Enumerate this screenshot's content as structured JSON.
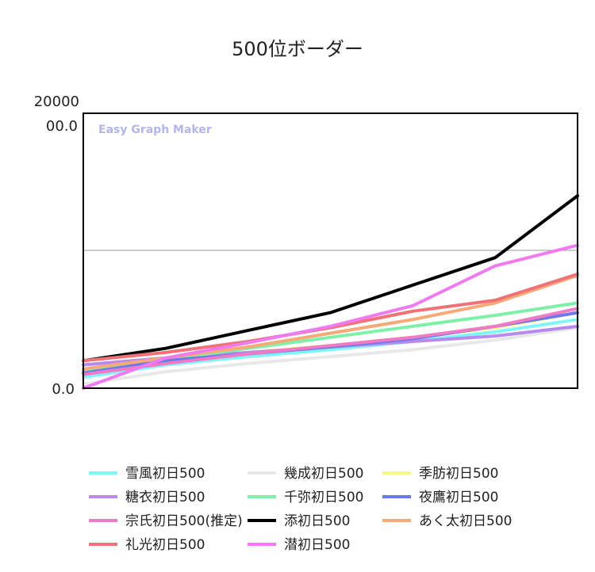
{
  "chart_data": {
    "type": "line",
    "title": "500位ボーダー",
    "watermark": "Easy Graph Maker",
    "xlabel": "",
    "ylabel": "",
    "y_tick_labels": [
      "20000",
      "00.0",
      "0.0"
    ],
    "ylim": [
      0,
      200000
    ],
    "grid": "one horizontal line at 100000",
    "legend_position": "bottom",
    "x": [
      1,
      2,
      3,
      4,
      5,
      6,
      7
    ],
    "series": [
      {
        "name": "雪風初日500",
        "color": "#7ff5f5",
        "values": [
          8000,
          17000,
          23000,
          28000,
          34000,
          41000,
          50000
        ]
      },
      {
        "name": "幾成初日500",
        "color": "#e8e8e8",
        "values": [
          3000,
          12000,
          18000,
          23000,
          28000,
          35000,
          44000
        ]
      },
      {
        "name": "季肪初日500",
        "color": "#f8f68a",
        "values": [
          12000,
          20000,
          26000,
          31000,
          37000,
          44000,
          55000
        ]
      },
      {
        "name": "糖衣初日500",
        "color": "#b88af0",
        "values": [
          17000,
          22000,
          26000,
          30000,
          34000,
          38000,
          45000
        ]
      },
      {
        "name": "千弥初日500",
        "color": "#7ef0a8",
        "values": [
          12000,
          21000,
          29000,
          37000,
          45000,
          53000,
          62000
        ]
      },
      {
        "name": "夜鷹初日500",
        "color": "#6b78ee",
        "values": [
          11000,
          20000,
          25000,
          30000,
          36000,
          45000,
          55000
        ]
      },
      {
        "name": "宗氏初日500(推定)",
        "color": "#f07ac6",
        "values": [
          10000,
          18000,
          25000,
          31000,
          37000,
          45000,
          58000
        ]
      },
      {
        "name": "添初日500",
        "color": "#000000",
        "values": [
          20000,
          29000,
          42000,
          55000,
          75000,
          95000,
          140000
        ]
      },
      {
        "name": "あく太初日500",
        "color": "#f6aa78",
        "values": [
          14000,
          22000,
          30000,
          40000,
          50000,
          62000,
          82000
        ]
      },
      {
        "name": "礼光初日500",
        "color": "#f07278",
        "values": [
          20000,
          26000,
          34000,
          44000,
          56000,
          64000,
          83000
        ]
      },
      {
        "name": "潜初日500",
        "color": "#f07af0",
        "values": [
          0,
          22000,
          33000,
          45000,
          60000,
          89000,
          104000
        ]
      }
    ]
  }
}
